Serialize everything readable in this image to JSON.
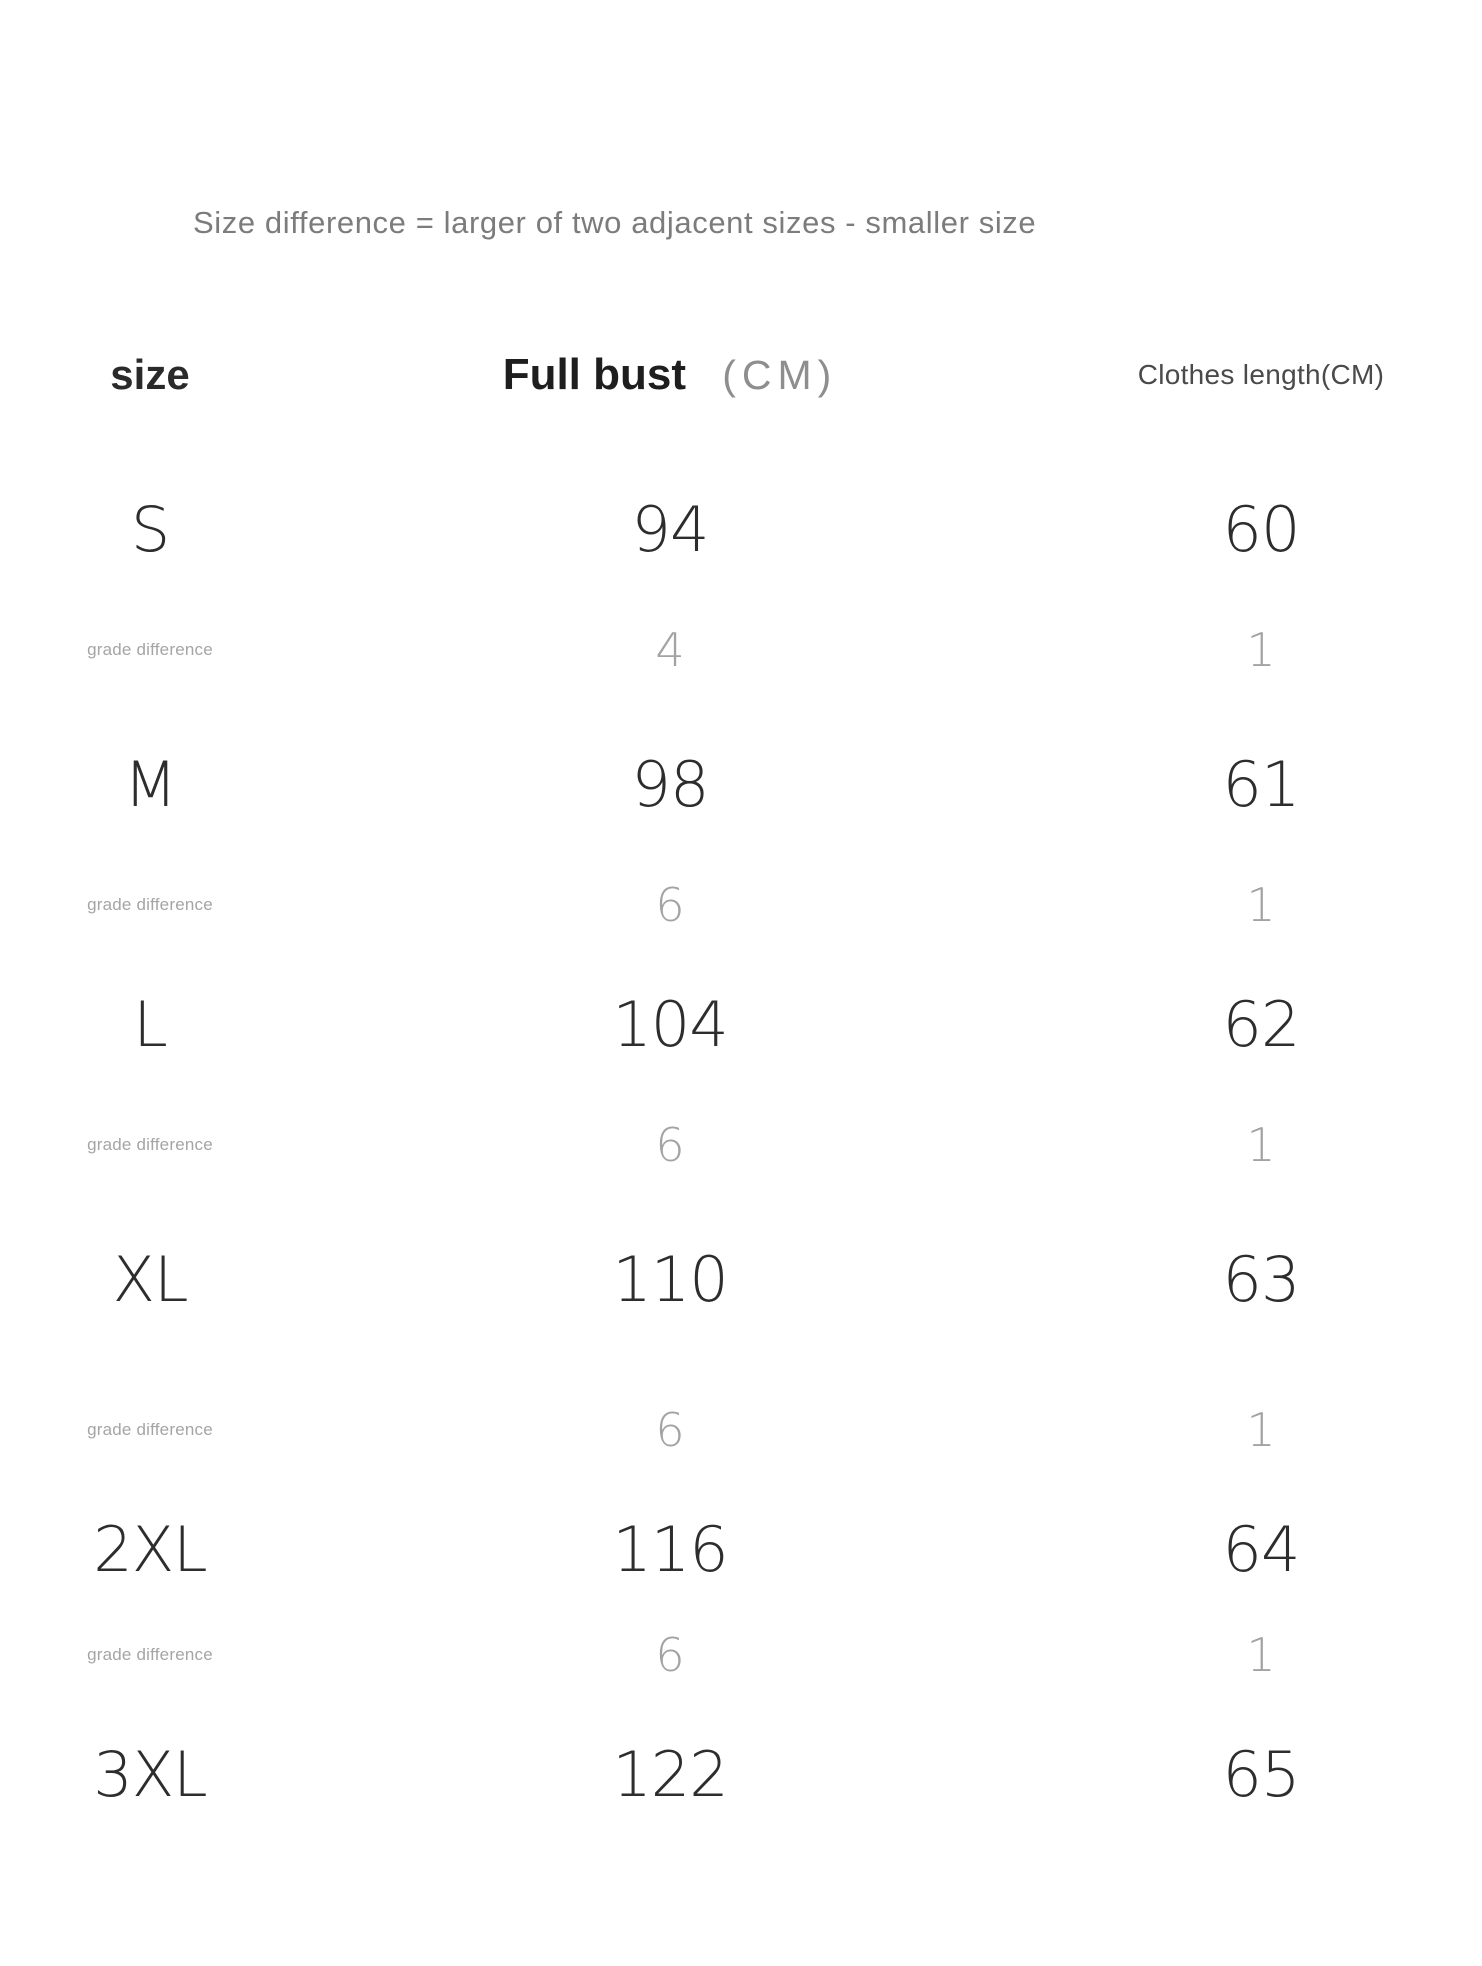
{
  "note": "Size difference = larger of two adjacent sizes - smaller size",
  "columns": {
    "size": "size",
    "full_bust": "Full bust",
    "full_bust_unit": "(CM)",
    "clothes_length": "Clothes length(CM)"
  },
  "rows": [
    {
      "type": "size",
      "size": "S",
      "full_bust": "94",
      "clothes_length": "60"
    },
    {
      "type": "diff",
      "label": "grade difference",
      "full_bust": "4",
      "clothes_length": "1"
    },
    {
      "type": "size",
      "size": "M",
      "full_bust": "98",
      "clothes_length": "61"
    },
    {
      "type": "diff",
      "label": "grade difference",
      "full_bust": "6",
      "clothes_length": "1"
    },
    {
      "type": "size",
      "size": "L",
      "full_bust": "104",
      "clothes_length": "62"
    },
    {
      "type": "diff",
      "label": "grade difference",
      "full_bust": "6",
      "clothes_length": "1"
    },
    {
      "type": "size",
      "size": "XL",
      "full_bust": "110",
      "clothes_length": "63"
    },
    {
      "type": "diff",
      "label": "grade difference",
      "full_bust": "6",
      "clothes_length": "1"
    },
    {
      "type": "size",
      "size": "2XL",
      "full_bust": "116",
      "clothes_length": "64"
    },
    {
      "type": "diff",
      "label": "grade difference",
      "full_bust": "6",
      "clothes_length": "1"
    },
    {
      "type": "size",
      "size": "3XL",
      "full_bust": "122",
      "clothes_length": "65"
    }
  ],
  "chart_data": {
    "type": "table",
    "title": "Size difference = larger of two adjacent sizes - smaller size",
    "columns": [
      "size",
      "Full bust (CM)",
      "Clothes length(CM)"
    ],
    "rows": [
      [
        "S",
        94,
        60
      ],
      [
        "grade difference",
        4,
        1
      ],
      [
        "M",
        98,
        61
      ],
      [
        "grade difference",
        6,
        1
      ],
      [
        "L",
        104,
        62
      ],
      [
        "grade difference",
        6,
        1
      ],
      [
        "XL",
        110,
        63
      ],
      [
        "grade difference",
        6,
        1
      ],
      [
        "2XL",
        116,
        64
      ],
      [
        "grade difference",
        6,
        1
      ],
      [
        "3XL",
        122,
        65
      ]
    ]
  }
}
